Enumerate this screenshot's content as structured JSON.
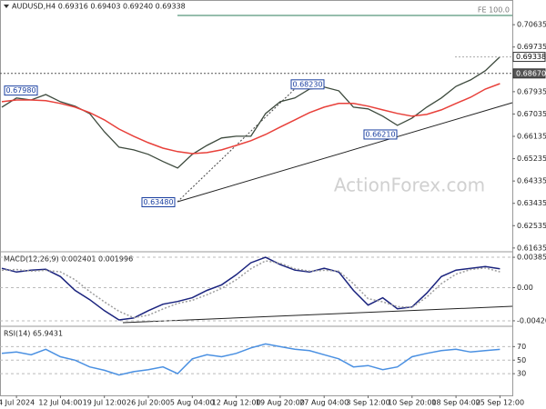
{
  "chart_data": [
    {
      "type": "line",
      "title": "AUDUSD,H4  0.69316 0.69403 0.69240 0.69338",
      "watermark": "ActionForex.com",
      "fe_label": "FE 100.0",
      "categories": [
        null,
        "4 Jul 2024",
        null,
        null,
        "12 Jul 04:00",
        null,
        null,
        "19 Jul 12:00",
        null,
        null,
        "26 Jul 20:00",
        null,
        null,
        "5 Aug 04:00",
        null,
        null,
        "12 Aug 12:00",
        null,
        null,
        "19 Aug 20:00",
        null,
        null,
        "27 Aug 04:00",
        null,
        null,
        "3 Sep 12:00",
        null,
        null,
        "10 Sep 20:00",
        null,
        null,
        "18 Sep 04:00",
        null,
        null,
        "25 Sep 12:00"
      ],
      "series": [
        {
          "color": "#3d4a3d",
          "values": [
            0.6731,
            0.6768,
            0.676,
            0.6782,
            0.6753,
            0.6735,
            0.6705,
            0.6632,
            0.657,
            0.6559,
            0.6541,
            0.6512,
            0.6486,
            0.6541,
            0.6577,
            0.6607,
            0.6614,
            0.6614,
            0.6705,
            0.6753,
            0.6768,
            0.6804,
            0.6812,
            0.6797,
            0.6731,
            0.6724,
            0.6695,
            0.6658,
            0.6687,
            0.6731,
            0.6768,
            0.6815,
            0.6841,
            0.6878,
            0.6934
          ]
        },
        {
          "color": "#e8403a",
          "values": [
            0.6753,
            0.676,
            0.676,
            0.6757,
            0.6746,
            0.6731,
            0.6709,
            0.668,
            0.6643,
            0.6614,
            0.6588,
            0.6566,
            0.6552,
            0.6544,
            0.6548,
            0.6559,
            0.6577,
            0.6596,
            0.6621,
            0.6651,
            0.668,
            0.6709,
            0.6731,
            0.6746,
            0.6746,
            0.6735,
            0.672,
            0.6706,
            0.6695,
            0.6702,
            0.672,
            0.6746,
            0.6771,
            0.6804,
            0.6826
          ]
        }
      ],
      "annotations": [
        {
          "value": 0.6798,
          "label": "0.67980"
        },
        {
          "value": 0.6823,
          "label": "0.68230"
        },
        {
          "value": 0.6621,
          "label": "0.66210"
        },
        {
          "value": 0.6348,
          "label": "0.63480"
        }
      ],
      "price_labels": [
        {
          "value": 0.69338,
          "label": "0.69338"
        },
        {
          "value": 0.6867,
          "label": "0.68670"
        }
      ],
      "ylim": [
        0.6152,
        0.7163
      ],
      "yticks": [
        0.70635,
        0.69735,
        0.67935,
        0.67035,
        0.66135,
        0.65235,
        0.64335,
        0.63435,
        0.62535,
        0.61635
      ]
    },
    {
      "type": "line",
      "title": "MACD(12,26,9) 0.002401 0.001996",
      "series": [
        {
          "color": "#1a237e",
          "values": [
            0.00245,
            0.00198,
            0.00222,
            0.00233,
            0.0014,
            -0.00035,
            -0.00152,
            -0.00292,
            -0.00409,
            -0.00385,
            -0.00292,
            -0.0021,
            -0.00175,
            -0.00128,
            -0.00035,
            0.00035,
            0.00163,
            0.00315,
            0.00385,
            0.00292,
            0.00222,
            0.00198,
            0.00245,
            0.00198,
            -0.00035,
            -0.00222,
            -0.00128,
            -0.00268,
            -0.00245,
            -0.0007,
            0.0014,
            0.00222,
            0.00245,
            0.00268,
            0.0024
          ]
        },
        {
          "color": "#9e9e9e",
          "values": [
            0.0022,
            0.0023,
            0.0021,
            0.0022,
            0.002,
            0.001,
            -0.0005,
            -0.0018,
            -0.003,
            -0.0038,
            -0.0035,
            -0.0027,
            -0.002,
            -0.0016,
            -0.0009,
            -0.0001,
            0.001,
            0.0024,
            0.0034,
            0.0031,
            0.0024,
            0.0021,
            0.0022,
            0.0021,
            0.0005,
            -0.0014,
            -0.0018,
            -0.0024,
            -0.0025,
            -0.0012,
            0.0005,
            0.0017,
            0.0023,
            0.0025,
            0.002
          ]
        }
      ],
      "ylim": [
        -0.00467,
        0.00455
      ],
      "yticks": [
        0.003852,
        {
          "value": 0,
          "label": "0.00"
        },
        -0.004204
      ]
    },
    {
      "type": "line",
      "title": "RSI(14) 65.9431",
      "series": [
        {
          "color": "#4a90e2",
          "values": [
            60,
            62,
            58,
            66,
            55,
            50,
            40,
            35,
            28,
            33,
            36,
            40,
            30,
            52,
            58,
            55,
            60,
            68,
            74,
            70,
            66,
            64,
            58,
            52,
            40,
            42,
            36,
            40,
            55,
            60,
            64,
            66,
            62,
            64,
            65.9431
          ]
        }
      ],
      "ylim": [
        0,
        100
      ],
      "yticks": [
        70,
        50,
        30
      ]
    }
  ]
}
